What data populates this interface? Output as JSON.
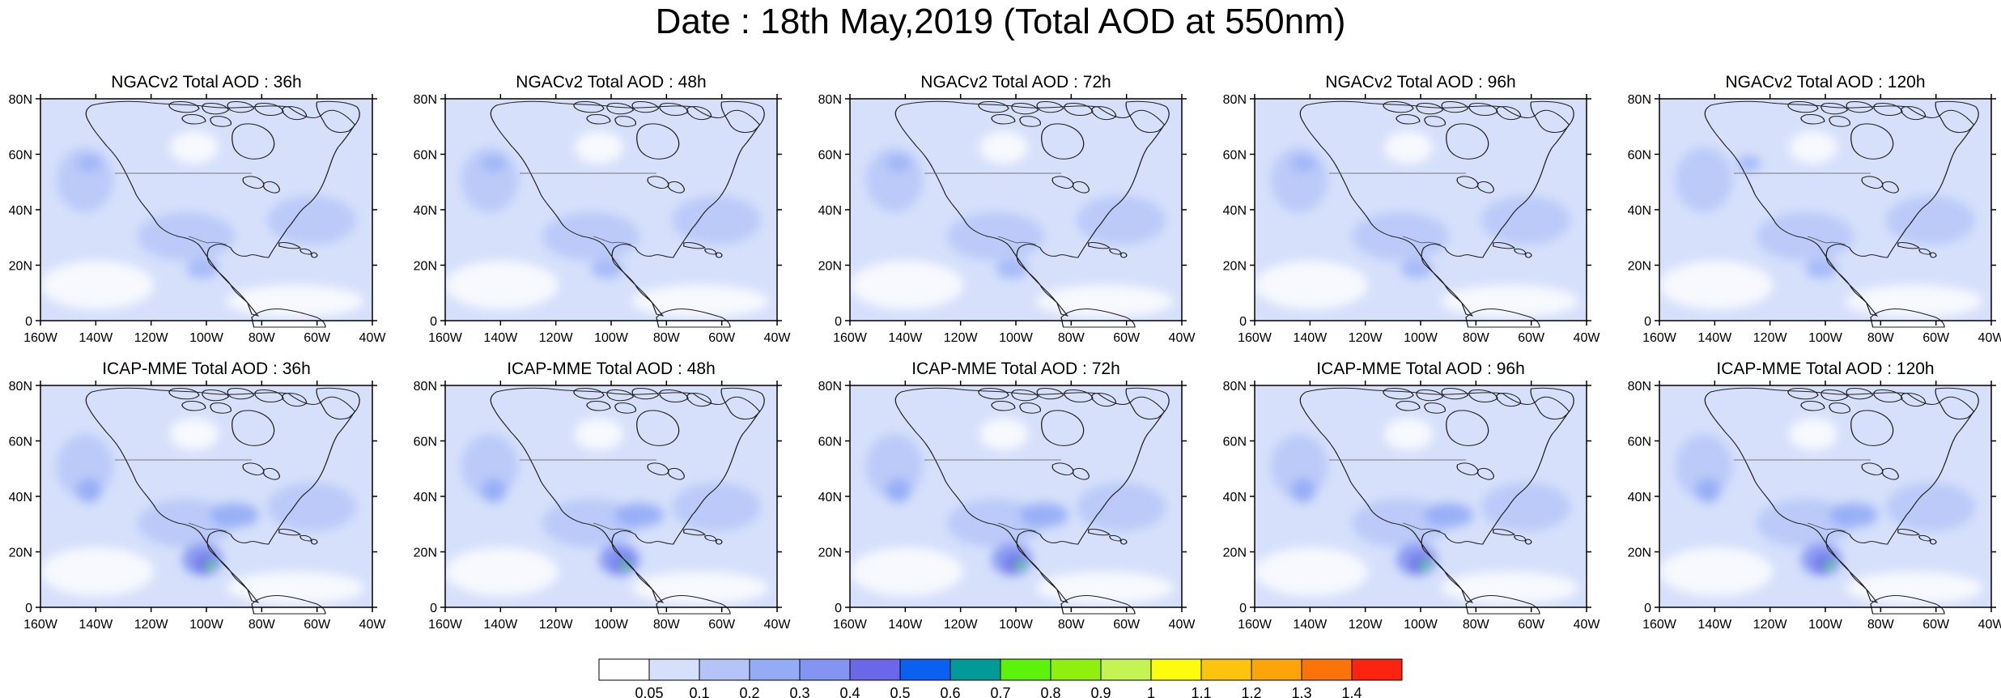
{
  "title": "Date : 18th May,2019 (Total AOD at 550nm)",
  "rows": [
    {
      "model": "NGACv2",
      "panels": [
        {
          "title": "NGACv2 Total AOD : 36h"
        },
        {
          "title": "NGACv2 Total AOD : 48h"
        },
        {
          "title": "NGACv2 Total AOD : 72h"
        },
        {
          "title": "NGACv2 Total AOD : 96h"
        },
        {
          "title": "NGACv2 Total AOD : 120h"
        }
      ]
    },
    {
      "model": "ICAP-MME",
      "panels": [
        {
          "title": "ICAP-MME Total AOD : 36h"
        },
        {
          "title": "ICAP-MME Total AOD : 48h"
        },
        {
          "title": "ICAP-MME Total AOD : 72h"
        },
        {
          "title": "ICAP-MME Total AOD : 96h"
        },
        {
          "title": "ICAP-MME Total AOD : 120h"
        }
      ]
    }
  ],
  "lat_ticks": [
    "80N",
    "60N",
    "40N",
    "20N",
    "0"
  ],
  "lon_ticks": [
    "160W",
    "140W",
    "120W",
    "100W",
    "80W",
    "60W",
    "40W"
  ],
  "colorbar": {
    "colors": [
      "#ffffff",
      "#d6e0fb",
      "#b4c4f8",
      "#94acf6",
      "#8494f2",
      "#6c66ea",
      "#0a60f0",
      "#009b98",
      "#5cf20a",
      "#8ef00c",
      "#c4f454",
      "#fcfc0c",
      "#fcc40c",
      "#fca40a",
      "#fc7408",
      "#fc2410"
    ],
    "labels": [
      "0.05",
      "0.1",
      "0.2",
      "0.3",
      "0.4",
      "0.5",
      "0.6",
      "0.7",
      "0.8",
      "0.9",
      "1",
      "1.1",
      "1.2",
      "1.3",
      "1.4"
    ]
  },
  "colors": {
    "background_aod": "#d6e0fb",
    "coast": "#222222"
  }
}
